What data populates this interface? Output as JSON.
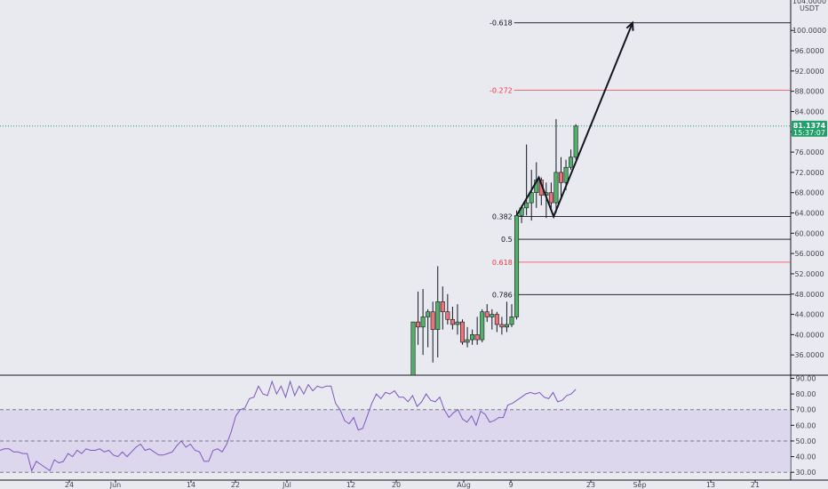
{
  "chart_data": {
    "type": "candlestick",
    "currency": "USDT",
    "price_axis": {
      "range": [
        32,
        106
      ],
      "ticks": [
        "104.0000",
        "100.0000",
        "96.0000",
        "92.0000",
        "88.0000",
        "84.0000",
        "80.0000",
        "76.0000",
        "72.0000",
        "68.0000",
        "64.0000",
        "60.0000",
        "56.0000",
        "52.0000",
        "48.0000",
        "44.0000",
        "40.0000",
        "36.0000"
      ]
    },
    "last_price": {
      "value": 81.1374,
      "label": "81.1374",
      "countdown": "15:37:07",
      "color": "#22a06b"
    },
    "x_axis_labels": [
      "24",
      "Jun",
      "14",
      "22",
      "Jul",
      "12",
      "20",
      "Aug",
      "9",
      "23",
      "Sep",
      "13",
      "21"
    ],
    "candles": [
      {
        "o": 30,
        "h": 42.5,
        "l": 30,
        "c": 42.5
      },
      {
        "o": 42.5,
        "h": 48.5,
        "l": 38,
        "c": 41.5
      },
      {
        "o": 41.5,
        "h": 49,
        "l": 36,
        "c": 43.5
      },
      {
        "o": 43.5,
        "h": 45,
        "l": 37.5,
        "c": 44.5
      },
      {
        "o": 44.5,
        "h": 46.5,
        "l": 34.5,
        "c": 41
      },
      {
        "o": 41,
        "h": 53.5,
        "l": 35.5,
        "c": 46.5
      },
      {
        "o": 46.5,
        "h": 49.5,
        "l": 41,
        "c": 44.5
      },
      {
        "o": 44.5,
        "h": 48,
        "l": 42,
        "c": 43
      },
      {
        "o": 43,
        "h": 45.5,
        "l": 41,
        "c": 42
      },
      {
        "o": 42,
        "h": 46,
        "l": 40,
        "c": 42.5
      },
      {
        "o": 42.5,
        "h": 43,
        "l": 38,
        "c": 38.5
      },
      {
        "o": 38.5,
        "h": 41.5,
        "l": 37.5,
        "c": 39
      },
      {
        "o": 39,
        "h": 41,
        "l": 38,
        "c": 40
      },
      {
        "o": 40,
        "h": 43.5,
        "l": 38,
        "c": 39
      },
      {
        "o": 39,
        "h": 45,
        "l": 38.5,
        "c": 44.5
      },
      {
        "o": 44.5,
        "h": 46,
        "l": 42.5,
        "c": 43.5
      },
      {
        "o": 43.5,
        "h": 45,
        "l": 41,
        "c": 44
      },
      {
        "o": 44,
        "h": 44.5,
        "l": 40.5,
        "c": 42
      },
      {
        "o": 42,
        "h": 43.5,
        "l": 40,
        "c": 41.5
      },
      {
        "o": 41.5,
        "h": 46.5,
        "l": 40.5,
        "c": 42
      },
      {
        "o": 42,
        "h": 46,
        "l": 41.5,
        "c": 43.5
      },
      {
        "o": 43.5,
        "h": 64.5,
        "l": 43,
        "c": 63.5
      },
      {
        "o": 63.5,
        "h": 65.5,
        "l": 62,
        "c": 65
      },
      {
        "o": 65,
        "h": 77.5,
        "l": 63.5,
        "c": 66
      },
      {
        "o": 66,
        "h": 72.5,
        "l": 62.5,
        "c": 68
      },
      {
        "o": 68,
        "h": 74,
        "l": 65,
        "c": 70.5
      },
      {
        "o": 70.5,
        "h": 71,
        "l": 65.5,
        "c": 67.5
      },
      {
        "o": 67.5,
        "h": 70,
        "l": 63,
        "c": 68
      },
      {
        "o": 68,
        "h": 70,
        "l": 64.5,
        "c": 66
      },
      {
        "o": 66,
        "h": 82.5,
        "l": 64,
        "c": 72
      },
      {
        "o": 72,
        "h": 75,
        "l": 67,
        "c": 70
      },
      {
        "o": 70,
        "h": 74.5,
        "l": 68.5,
        "c": 73
      },
      {
        "o": 73,
        "h": 76.5,
        "l": 72.5,
        "c": 75
      },
      {
        "o": 75,
        "h": 81.5,
        "l": 74.5,
        "c": 81.1374
      }
    ],
    "fib_levels": [
      {
        "label": "-0.618",
        "price": 101.5,
        "color": "#131722"
      },
      {
        "label": "-0.272",
        "price": 88.2,
        "color": "#f23645"
      },
      {
        "label": "0.382",
        "price": 63.3,
        "color": "#131722"
      },
      {
        "label": "0.5",
        "price": 58.8,
        "color": "#131722"
      },
      {
        "label": "0.618",
        "price": 54.3,
        "color": "#f23645"
      },
      {
        "label": "0.786",
        "price": 47.9,
        "color": "#131722"
      }
    ],
    "projection_path": [
      {
        "candle": 21,
        "price": 63.5
      },
      {
        "candle": 25.5,
        "price": 71
      },
      {
        "candle": 28.5,
        "price": 63.3
      },
      {
        "candle": 44.5,
        "price": 101.5
      }
    ],
    "rsi": {
      "range": [
        25,
        92
      ],
      "ticks": [
        "90.00",
        "80.00",
        "70.00",
        "60.00",
        "50.00",
        "40.00",
        "30.00"
      ],
      "band": [
        30,
        70
      ],
      "midline": 50,
      "values": [
        44,
        45,
        45,
        43,
        43,
        42,
        42,
        31,
        37,
        35,
        33,
        31,
        38,
        36,
        37,
        42,
        40,
        44,
        42,
        45,
        44,
        44,
        45,
        43,
        44,
        41,
        40,
        43,
        40,
        43,
        46,
        48,
        44,
        45,
        43,
        41,
        41,
        42,
        43,
        47,
        50,
        46,
        48,
        44,
        43,
        37,
        37,
        44,
        45,
        43,
        48,
        56,
        66,
        70,
        71,
        77,
        78,
        85,
        80,
        79,
        88,
        80,
        85,
        78,
        88,
        79,
        85,
        80,
        86,
        82,
        85,
        84,
        85,
        85,
        74,
        70,
        63,
        61,
        65,
        57,
        58,
        66,
        74,
        80,
        77,
        81,
        80,
        82,
        78,
        78,
        75,
        79,
        72,
        75,
        80,
        76,
        75,
        78,
        70,
        65,
        68,
        70,
        64,
        62,
        66,
        60,
        69,
        67,
        62,
        63,
        65,
        65,
        73,
        74,
        76,
        78,
        80,
        81,
        80,
        81,
        78,
        77,
        81,
        75,
        76,
        79,
        80,
        83
      ]
    },
    "colors": {
      "up": "#52b067",
      "down": "#ec7377",
      "rsi_line": "#7e57c2",
      "rsi_band": "#d6cfe9"
    }
  }
}
